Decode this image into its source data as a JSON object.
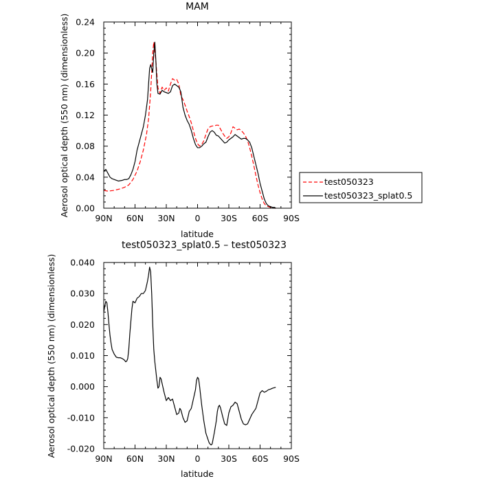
{
  "chart_data": [
    {
      "type": "line",
      "title": "MAM",
      "xlabel": "latitude",
      "ylabel": "Aerosol optical depth (550 nm) (dimensionless)",
      "xlim": [
        90,
        -90
      ],
      "ylim": [
        0,
        0.24
      ],
      "xticks": [
        90,
        60,
        30,
        0,
        -30,
        -60,
        -90
      ],
      "xticklabels": [
        "90N",
        "60N",
        "30N",
        "0",
        "30S",
        "60S",
        "90S"
      ],
      "yticks": [
        0,
        0.04,
        0.08,
        0.12,
        0.16,
        0.2,
        0.24
      ],
      "yticklabels": [
        "0.00",
        "0.04",
        "0.08",
        "0.12",
        "0.16",
        "0.20",
        "0.24"
      ],
      "legend_position": "right",
      "series": [
        {
          "name": "test050323",
          "style": "dashed",
          "color": "#ff0000",
          "x": [
            90,
            86,
            80,
            74,
            70,
            66,
            62,
            58,
            55,
            52,
            49,
            47,
            45,
            43,
            42,
            40,
            38,
            36,
            34,
            32,
            30,
            28,
            26,
            24,
            22,
            20,
            18,
            16,
            14,
            12,
            10,
            8,
            6,
            4,
            2,
            0,
            -2,
            -4,
            -6,
            -8,
            -10,
            -12,
            -14,
            -16,
            -18,
            -20,
            -22,
            -24,
            -26,
            -28,
            -30,
            -32,
            -34,
            -36,
            -38,
            -40,
            -42,
            -44,
            -46,
            -48,
            -50,
            -52,
            -54,
            -56,
            -58,
            -60,
            -62,
            -64,
            -66,
            -68,
            -70,
            -72,
            -74,
            -75
          ],
          "y": [
            0.023,
            0.022,
            0.023,
            0.025,
            0.027,
            0.03,
            0.037,
            0.048,
            0.06,
            0.075,
            0.095,
            0.115,
            0.15,
            0.2,
            0.214,
            0.19,
            0.155,
            0.148,
            0.156,
            0.152,
            0.155,
            0.151,
            0.16,
            0.167,
            0.165,
            0.166,
            0.16,
            0.145,
            0.14,
            0.133,
            0.125,
            0.118,
            0.11,
            0.1,
            0.09,
            0.083,
            0.08,
            0.082,
            0.087,
            0.095,
            0.102,
            0.105,
            0.106,
            0.106,
            0.107,
            0.107,
            0.102,
            0.097,
            0.093,
            0.09,
            0.092,
            0.097,
            0.105,
            0.103,
            0.101,
            0.102,
            0.1,
            0.097,
            0.093,
            0.087,
            0.078,
            0.067,
            0.055,
            0.042,
            0.03,
            0.02,
            0.012,
            0.006,
            0.003,
            0.002,
            0.001,
            0.001,
            0.0,
            0.0
          ]
        },
        {
          "name": "test050323_splat0.5",
          "style": "solid",
          "color": "#000000",
          "x": [
            90,
            89,
            88,
            86,
            84,
            82,
            80,
            76,
            72,
            70,
            68,
            66,
            64,
            62,
            60,
            58,
            55,
            52,
            50,
            48,
            47,
            46,
            45,
            44,
            43,
            42,
            41,
            40,
            39,
            38,
            36,
            34,
            32,
            30,
            28,
            26,
            24,
            22,
            20,
            18,
            16,
            14,
            12,
            10,
            8,
            6,
            4,
            2,
            0,
            -2,
            -4,
            -6,
            -8,
            -10,
            -12,
            -14,
            -16,
            -18,
            -20,
            -22,
            -24,
            -26,
            -28,
            -30,
            -32,
            -34,
            -36,
            -38,
            -40,
            -42,
            -44,
            -46,
            -48,
            -50,
            -52,
            -54,
            -56,
            -58,
            -60,
            -62,
            -64,
            -66,
            -68,
            -70,
            -72,
            -74,
            -75
          ],
          "y": [
            0.047,
            0.049,
            0.05,
            0.045,
            0.04,
            0.038,
            0.037,
            0.035,
            0.036,
            0.037,
            0.037,
            0.038,
            0.043,
            0.05,
            0.06,
            0.075,
            0.09,
            0.105,
            0.12,
            0.14,
            0.16,
            0.18,
            0.185,
            0.18,
            0.175,
            0.2,
            0.214,
            0.19,
            0.16,
            0.148,
            0.147,
            0.152,
            0.15,
            0.149,
            0.148,
            0.15,
            0.158,
            0.16,
            0.158,
            0.156,
            0.15,
            0.13,
            0.12,
            0.113,
            0.108,
            0.1,
            0.09,
            0.082,
            0.078,
            0.078,
            0.08,
            0.083,
            0.085,
            0.092,
            0.098,
            0.1,
            0.098,
            0.094,
            0.093,
            0.09,
            0.087,
            0.084,
            0.085,
            0.088,
            0.09,
            0.092,
            0.095,
            0.093,
            0.091,
            0.089,
            0.09,
            0.09,
            0.088,
            0.085,
            0.078,
            0.067,
            0.056,
            0.045,
            0.032,
            0.022,
            0.012,
            0.006,
            0.003,
            0.002,
            0.001,
            0.001,
            0.0
          ]
        }
      ]
    },
    {
      "type": "line",
      "title": "test050323_splat0.5 – test050323",
      "xlabel": "latitude",
      "ylabel": "Aerosol optical depth (550 nm) (dimensionless)",
      "xlim": [
        90,
        -90
      ],
      "ylim": [
        -0.02,
        0.04
      ],
      "xticks": [
        90,
        60,
        30,
        0,
        -30,
        -60,
        -90
      ],
      "xticklabels": [
        "90N",
        "60N",
        "30N",
        "0",
        "30S",
        "60S",
        "90S"
      ],
      "yticks": [
        -0.02,
        -0.01,
        0.0,
        0.01,
        0.02,
        0.03,
        0.04
      ],
      "yticklabels": [
        "-0.020",
        "-0.010",
        "0.000",
        "0.010",
        "0.020",
        "0.030",
        "0.040"
      ],
      "series": [
        {
          "style": "solid",
          "color": "#000000",
          "x": [
            90,
            89,
            88,
            87,
            86,
            85,
            84,
            83,
            82,
            80,
            78,
            76,
            74,
            72,
            70,
            69,
            68,
            67,
            66,
            65,
            64,
            63,
            62,
            60,
            58,
            56,
            54,
            52,
            50,
            48,
            47,
            46,
            45,
            44,
            43,
            42,
            41,
            40,
            39,
            38,
            37,
            36,
            35,
            34,
            32,
            30,
            28,
            26,
            24,
            22,
            20,
            18,
            17,
            16,
            14,
            12,
            10,
            8,
            6,
            4,
            2,
            1,
            0,
            -1,
            -2,
            -4,
            -6,
            -8,
            -10,
            -11,
            -12,
            -13,
            -14,
            -16,
            -18,
            -19,
            -20,
            -21,
            -22,
            -24,
            -26,
            -28,
            -30,
            -32,
            -34,
            -36,
            -38,
            -40,
            -42,
            -44,
            -46,
            -48,
            -50,
            -52,
            -54,
            -56,
            -58,
            -60,
            -62,
            -64,
            -66,
            -68,
            -70,
            -72,
            -74,
            -75
          ],
          "y": [
            0.024,
            0.026,
            0.0275,
            0.027,
            0.024,
            0.02,
            0.0165,
            0.014,
            0.012,
            0.0105,
            0.0095,
            0.0093,
            0.0093,
            0.009,
            0.0085,
            0.008,
            0.0082,
            0.009,
            0.012,
            0.017,
            0.021,
            0.025,
            0.0275,
            0.027,
            0.0285,
            0.029,
            0.03,
            0.03,
            0.031,
            0.034,
            0.036,
            0.0385,
            0.037,
            0.03,
            0.02,
            0.012,
            0.008,
            0.005,
            0.002,
            -0.0005,
            0.0,
            0.003,
            0.0025,
            0.001,
            -0.002,
            -0.0045,
            -0.0035,
            -0.0045,
            -0.004,
            -0.0065,
            -0.009,
            -0.0085,
            -0.007,
            -0.0075,
            -0.01,
            -0.0115,
            -0.011,
            -0.008,
            -0.007,
            -0.004,
            -0.001,
            0.002,
            0.003,
            0.0025,
            0.0,
            -0.006,
            -0.011,
            -0.015,
            -0.017,
            -0.018,
            -0.0185,
            -0.0188,
            -0.0185,
            -0.015,
            -0.011,
            -0.008,
            -0.0065,
            -0.006,
            -0.0068,
            -0.0095,
            -0.012,
            -0.0125,
            -0.0085,
            -0.0065,
            -0.006,
            -0.005,
            -0.0055,
            -0.008,
            -0.0105,
            -0.012,
            -0.0123,
            -0.012,
            -0.0105,
            -0.009,
            -0.008,
            -0.007,
            -0.0045,
            -0.002,
            -0.0013,
            -0.0018,
            -0.0015,
            -0.001,
            -0.0008,
            -0.0005,
            -0.0003,
            -0.0002
          ]
        }
      ]
    }
  ]
}
